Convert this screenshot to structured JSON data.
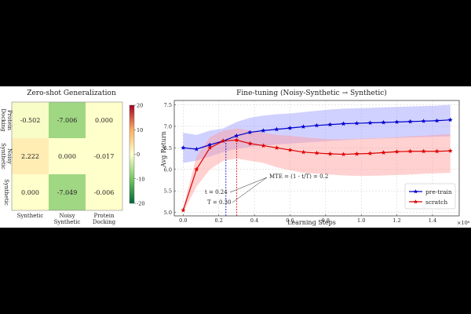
{
  "chart_data": [
    {
      "type": "heatmap",
      "title": "Zero-shot Generalization",
      "row_labels": [
        "Protein Docking",
        "Noisy Synthetic",
        "Synthetic"
      ],
      "col_labels": [
        "Synthetic",
        "Noisy Synthetic",
        "Protein Docking"
      ],
      "values": [
        [
          -0.502,
          -7.006,
          0.0
        ],
        [
          2.222,
          0.0,
          -0.017
        ],
        [
          0.0,
          -7.049,
          -0.006
        ]
      ],
      "cell_text": [
        [
          "-0.502",
          "-7.006",
          "0.000"
        ],
        [
          "2.222",
          "0.000",
          "-0.017"
        ],
        [
          "0.000",
          "-7.049",
          "-0.006"
        ]
      ],
      "colorbar": {
        "min": -20,
        "max": 20,
        "ticks": [
          20,
          10,
          0,
          -10,
          -20
        ],
        "colormap": "green-yellow-red"
      }
    },
    {
      "type": "line",
      "title": "Fine-tuning (Noisy-Synthetic → Synthetic)",
      "xlabel": "Learning Steps",
      "ylabel": "Avg Return",
      "x_exponent": "×10⁶",
      "xlim": [
        -0.05,
        1.55
      ],
      "ylim": [
        4.92,
        7.6
      ],
      "xticks": [
        0.0,
        0.2,
        0.4,
        0.6,
        0.8,
        1.0,
        1.2,
        1.4
      ],
      "xtick_labels": [
        "0.0",
        "0.2",
        "0.4",
        "0.6",
        "0.8",
        "1.0",
        "1.2",
        "1.4"
      ],
      "yticks": [
        5.0,
        5.5,
        6.0,
        6.5,
        7.0,
        7.5
      ],
      "ytick_labels": [
        "5.0",
        "5.5",
        "6.0",
        "6.5",
        "7.0",
        "7.5"
      ],
      "grid": true,
      "legend_position": "bottom-right",
      "x": [
        0.0,
        0.075,
        0.15,
        0.225,
        0.3,
        0.375,
        0.45,
        0.525,
        0.6,
        0.675,
        0.75,
        0.825,
        0.9,
        0.975,
        1.05,
        1.125,
        1.2,
        1.275,
        1.35,
        1.425,
        1.5
      ],
      "series": [
        {
          "name": "pre-train",
          "color": "#0000cc",
          "band_color": "#9999ff",
          "values": [
            6.5,
            6.47,
            6.57,
            6.66,
            6.78,
            6.86,
            6.9,
            6.93,
            6.96,
            6.99,
            7.02,
            7.04,
            7.06,
            7.07,
            7.08,
            7.09,
            7.1,
            7.11,
            7.12,
            7.13,
            7.15
          ],
          "lower": [
            6.15,
            6.2,
            6.3,
            6.4,
            6.48,
            6.52,
            6.55,
            6.58,
            6.6,
            6.62,
            6.64,
            6.66,
            6.68,
            6.7,
            6.71,
            6.72,
            6.73,
            6.74,
            6.75,
            6.76,
            6.77
          ],
          "upper": [
            6.85,
            6.8,
            6.9,
            6.95,
            7.1,
            7.2,
            7.25,
            7.28,
            7.3,
            7.33,
            7.36,
            7.39,
            7.41,
            7.42,
            7.43,
            7.44,
            7.45,
            7.46,
            7.47,
            7.48,
            7.5
          ]
        },
        {
          "name": "scratch",
          "color": "#dd0000",
          "band_color": "#ff9999",
          "values": [
            5.05,
            6.0,
            6.5,
            6.66,
            6.68,
            6.6,
            6.55,
            6.5,
            6.45,
            6.4,
            6.38,
            6.36,
            6.35,
            6.36,
            6.37,
            6.39,
            6.41,
            6.42,
            6.42,
            6.42,
            6.43
          ],
          "lower": [
            5.0,
            5.6,
            6.0,
            6.2,
            6.25,
            6.2,
            6.15,
            6.05,
            5.98,
            5.92,
            5.9,
            5.88,
            5.86,
            5.85,
            5.85,
            5.86,
            5.87,
            5.88,
            5.9,
            5.91,
            5.92
          ],
          "upper": [
            5.1,
            6.3,
            6.75,
            6.9,
            6.95,
            6.9,
            6.85,
            6.8,
            6.78,
            6.75,
            6.72,
            6.7,
            6.7,
            6.71,
            6.72,
            6.73,
            6.75,
            6.77,
            6.78,
            6.8,
            6.82
          ]
        }
      ],
      "vlines": [
        {
          "x": 0.24,
          "color": "#0000cc"
        },
        {
          "x": 0.3,
          "color": "#dd0000"
        }
      ],
      "annotations": [
        {
          "text": "MTE = (1 - t/T) = 0.2"
        },
        {
          "text": "t = 0.24"
        },
        {
          "text": "T = 0.30"
        }
      ]
    }
  ]
}
